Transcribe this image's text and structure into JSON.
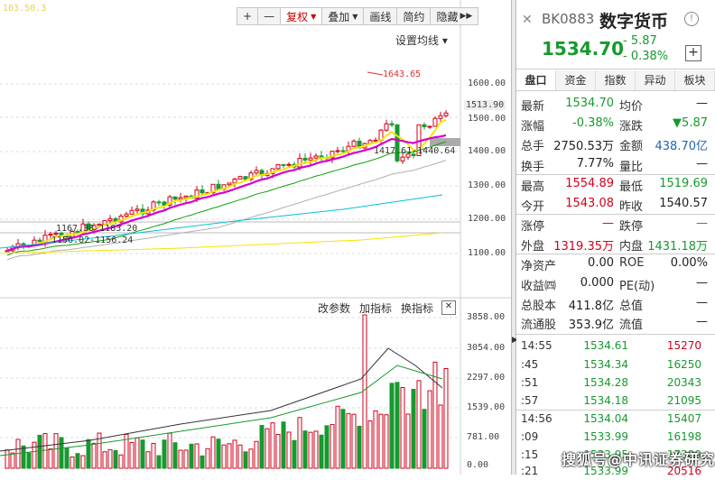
{
  "toolbar": {
    "plus": "+",
    "minus": "—",
    "fuquan": "复权",
    "overlay": "叠加",
    "draw": "画线",
    "brief": "简约",
    "hide": "隐藏",
    "more": "▶▶"
  },
  "chart": {
    "ma_label": "103.50.3",
    "set_ma": "设置均线 ▾",
    "price_axis": [
      "1600.00",
      "1513.90",
      "1500.00",
      "1400.00",
      "1300.00",
      "1200.00",
      "1100.00"
    ],
    "annotations": {
      "high": "1643.65",
      "low_mid": "1417.61-1440.64",
      "mid_left": "1167.38-1183.20",
      "low_left": "1156.02-1156.24"
    },
    "sub_toolbar": [
      "改参数",
      "加指标",
      "换指标"
    ],
    "close_x": "✕",
    "vol_axis": [
      "3858.00",
      "3054.00",
      "2297.00",
      "1539.00",
      "781.00",
      "0.00"
    ]
  },
  "header": {
    "close": "✕",
    "code": "BK0883",
    "name": "数字货币",
    "info": "!",
    "price": "1534.70",
    "change": "- 5.87",
    "pct": "- 0.38%",
    "plus": "+"
  },
  "tabs": [
    "盘口",
    "资金",
    "指数",
    "异动",
    "板块"
  ],
  "quote_rows": [
    {
      "l1": "最新",
      "v1": "1534.70",
      "c1": "green",
      "l2": "均价",
      "v2": "—",
      "c2": "blk"
    },
    {
      "l1": "涨幅",
      "v1": "-0.38%",
      "c1": "green",
      "l2": "涨跌",
      "v2": "▼5.87",
      "c2": "green"
    },
    {
      "l1": "总手",
      "v1": "2750.53万",
      "c1": "blk",
      "l2": "金额",
      "v2": "438.70亿",
      "c2": "blue"
    },
    {
      "l1": "换手",
      "v1": "7.77%",
      "c1": "blk",
      "l2": "量比",
      "v2": "—",
      "c2": "blk"
    },
    {
      "l1": "最高",
      "v1": "1554.89",
      "c1": "red",
      "l2": "最低",
      "v2": "1519.69",
      "c2": "green"
    },
    {
      "l1": "今开",
      "v1": "1543.08",
      "c1": "red",
      "l2": "昨收",
      "v2": "1540.57",
      "c2": "blk"
    },
    {
      "l1": "涨停",
      "v1": "—",
      "c1": "red",
      "l2": "跌停",
      "v2": "—",
      "c2": "green"
    },
    {
      "l1": "外盘",
      "v1": "1319.35万",
      "c1": "red",
      "l2": "内盘",
      "v2": "1431.18万",
      "c2": "green"
    },
    {
      "l1": "净资产",
      "v1": "0.00",
      "c1": "blk",
      "l2": "ROE",
      "v2": "0.00%",
      "c2": "blk"
    },
    {
      "l1": "收益㈣",
      "v1": "0.000",
      "c1": "blk",
      "l2": "PE(动)",
      "v2": "—",
      "c2": "blk"
    },
    {
      "l1": "总股本",
      "v1": "411.8亿",
      "c1": "blk",
      "l2": "总值",
      "v2": "—",
      "c2": "blk"
    },
    {
      "l1": "流通股",
      "v1": "353.9亿",
      "c1": "blk",
      "l2": "流值",
      "v2": "—",
      "c2": "blk"
    }
  ],
  "ticks": [
    {
      "time": "14:55",
      "price": "1534.61",
      "vol": "15270",
      "vc": "red"
    },
    {
      "time": ":45",
      "price": "1534.34",
      "vol": "16250",
      "vc": "green"
    },
    {
      "time": ":51",
      "price": "1534.28",
      "vol": "20343",
      "vc": "green"
    },
    {
      "time": ":57",
      "price": "1534.18",
      "vol": "21095",
      "vc": "green"
    },
    {
      "time": "14:56",
      "price": "1534.04",
      "vol": "15407",
      "vc": "green"
    },
    {
      "time": ":09",
      "price": "1533.99",
      "vol": "16198",
      "vc": "green"
    },
    {
      "time": ":15",
      "price": "1533.95",
      "vol": "17389",
      "vc": "green"
    },
    {
      "time": ":21",
      "price": "1533.99",
      "vol": "20516",
      "vc": "red"
    }
  ],
  "watermark": "搜狐号@中讯证券研究",
  "colors": {
    "up": "#d0021b",
    "down": "#169a2f",
    "ma5": "#f5e500",
    "ma10": "#d400d4",
    "ma20": "#12a012",
    "ma60": "#b0b0b0",
    "ma120": "#00c2d9"
  }
}
